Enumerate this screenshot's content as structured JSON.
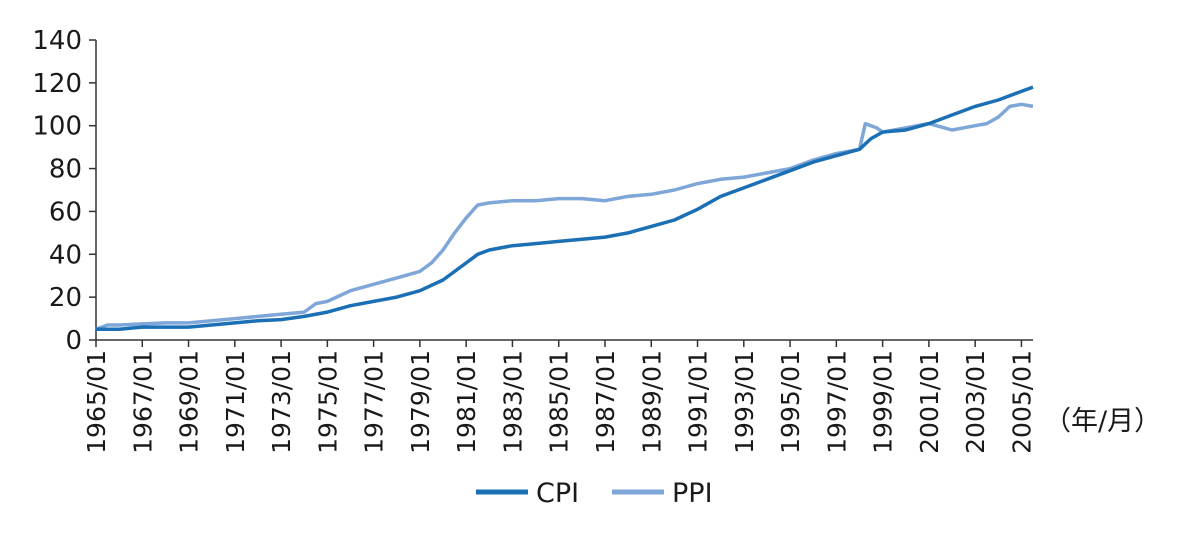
{
  "chart_data": {
    "type": "line",
    "title": "",
    "xlabel": "",
    "ylabel": "",
    "x_unit_label": "（年/月）",
    "ylim": [
      0,
      140
    ],
    "y_ticks": [
      "0",
      "20",
      "40",
      "60",
      "80",
      "100",
      "120",
      "140"
    ],
    "x_tick_labels": [
      "1965/01",
      "1967/01",
      "1969/01",
      "1971/01",
      "1973/01",
      "1975/01",
      "1977/01",
      "1979/01",
      "1981/01",
      "1983/01",
      "1985/01",
      "1987/01",
      "1989/01",
      "1991/01",
      "1993/01",
      "1995/01",
      "1997/01",
      "1999/01",
      "2001/01",
      "2003/01",
      "2005/01"
    ],
    "xlim": [
      "1965/01",
      "2005/07"
    ],
    "grid": false,
    "legend_position": "bottom-center",
    "series": [
      {
        "name": "CPI",
        "color": "#1b6fb5",
        "points": [
          [
            "1965/01",
            5
          ],
          [
            "1966/01",
            5
          ],
          [
            "1967/01",
            6
          ],
          [
            "1968/01",
            6
          ],
          [
            "1969/01",
            6
          ],
          [
            "1970/01",
            7
          ],
          [
            "1971/01",
            8
          ],
          [
            "1972/01",
            9
          ],
          [
            "1973/01",
            9.5
          ],
          [
            "1974/01",
            11
          ],
          [
            "1975/01",
            13
          ],
          [
            "1976/01",
            16
          ],
          [
            "1977/01",
            18
          ],
          [
            "1978/01",
            20
          ],
          [
            "1979/01",
            23
          ],
          [
            "1980/01",
            28
          ],
          [
            "1981/01",
            36
          ],
          [
            "1981/07",
            40
          ],
          [
            "1982/01",
            42
          ],
          [
            "1983/01",
            44
          ],
          [
            "1984/01",
            45
          ],
          [
            "1985/01",
            46
          ],
          [
            "1986/01",
            47
          ],
          [
            "1987/01",
            48
          ],
          [
            "1988/01",
            50
          ],
          [
            "1989/01",
            53
          ],
          [
            "1990/01",
            56
          ],
          [
            "1991/01",
            61
          ],
          [
            "1992/01",
            67
          ],
          [
            "1993/01",
            71
          ],
          [
            "1994/01",
            75
          ],
          [
            "1995/01",
            79
          ],
          [
            "1996/01",
            83
          ],
          [
            "1997/01",
            86
          ],
          [
            "1998/01",
            89
          ],
          [
            "1998/07",
            94
          ],
          [
            "1999/01",
            97
          ],
          [
            "2000/01",
            98
          ],
          [
            "2001/01",
            101
          ],
          [
            "2002/01",
            105
          ],
          [
            "2003/01",
            109
          ],
          [
            "2004/01",
            112
          ],
          [
            "2005/01",
            116
          ],
          [
            "2005/07",
            118
          ]
        ]
      },
      {
        "name": "PPI",
        "color": "#7ea6d8",
        "points": [
          [
            "1965/01",
            5
          ],
          [
            "1965/07",
            7
          ],
          [
            "1966/01",
            7
          ],
          [
            "1967/01",
            7.5
          ],
          [
            "1968/01",
            8
          ],
          [
            "1969/01",
            8
          ],
          [
            "1970/01",
            9
          ],
          [
            "1971/01",
            10
          ],
          [
            "1972/01",
            11
          ],
          [
            "1973/01",
            12
          ],
          [
            "1974/01",
            13
          ],
          [
            "1974/07",
            17
          ],
          [
            "1975/01",
            18
          ],
          [
            "1976/01",
            23
          ],
          [
            "1977/01",
            26
          ],
          [
            "1978/01",
            29
          ],
          [
            "1979/01",
            32
          ],
          [
            "1979/07",
            36
          ],
          [
            "1980/01",
            42
          ],
          [
            "1980/07",
            50
          ],
          [
            "1981/01",
            57
          ],
          [
            "1981/07",
            63
          ],
          [
            "1982/01",
            64
          ],
          [
            "1983/01",
            65
          ],
          [
            "1984/01",
            65
          ],
          [
            "1985/01",
            66
          ],
          [
            "1986/01",
            66
          ],
          [
            "1987/01",
            65
          ],
          [
            "1988/01",
            67
          ],
          [
            "1989/01",
            68
          ],
          [
            "1990/01",
            70
          ],
          [
            "1991/01",
            73
          ],
          [
            "1992/01",
            75
          ],
          [
            "1993/01",
            76
          ],
          [
            "1994/01",
            78
          ],
          [
            "1995/01",
            80
          ],
          [
            "1996/01",
            84
          ],
          [
            "1997/01",
            87
          ],
          [
            "1998/01",
            89
          ],
          [
            "1998/04",
            101
          ],
          [
            "1998/10",
            99
          ],
          [
            "1999/01",
            97
          ],
          [
            "2000/01",
            99
          ],
          [
            "2001/01",
            101
          ],
          [
            "2002/01",
            98
          ],
          [
            "2003/01",
            100
          ],
          [
            "2003/07",
            101
          ],
          [
            "2004/01",
            104
          ],
          [
            "2004/07",
            109
          ],
          [
            "2005/01",
            110
          ],
          [
            "2005/07",
            109
          ]
        ]
      }
    ]
  }
}
